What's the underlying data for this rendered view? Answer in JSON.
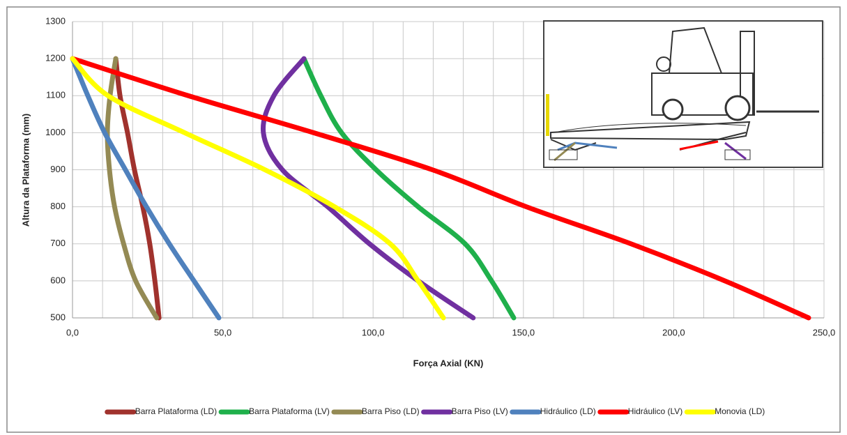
{
  "chart_data": {
    "type": "line",
    "x_label": "Força Axial (KN)",
    "y_label": "Altura da Plataforma (mm)",
    "y": [
      500,
      600,
      700,
      800,
      900,
      1000,
      1100,
      1200
    ],
    "series": [
      {
        "name": "Barra Plataforma (LD)",
        "color": "#a0322d",
        "values": [
          28.8,
          27.4,
          25.7,
          23.4,
          20.6,
          18.3,
          15.8,
          14.4
        ]
      },
      {
        "name": "Barra Plataforma (LV)",
        "color": "#1fb04b",
        "values": [
          146.8,
          139.4,
          130.6,
          115,
          101,
          89.5,
          82.6,
          77
        ]
      },
      {
        "name": "Barra Piso (LD)",
        "color": "#948a54",
        "values": [
          28,
          21,
          17,
          14,
          12.3,
          11.6,
          12.5,
          14.4
        ]
      },
      {
        "name": "Barra Piso (LV)",
        "color": "#7030a0",
        "values": [
          133.3,
          115,
          98.8,
          84.9,
          69.8,
          63.5,
          67,
          77
        ]
      },
      {
        "name": "Hidráulico (LD)",
        "color": "#4f81bd",
        "values": [
          48.7,
          40.4,
          32.2,
          24.6,
          17.6,
          10.7,
          5.1,
          0
        ]
      },
      {
        "name": "Hidráulico (LV)",
        "color": "#ff0000",
        "values": [
          244.9,
          217,
          185.8,
          151,
          119.7,
          80.2,
          38.5,
          0
        ]
      },
      {
        "name": "Monovia (LD)",
        "color": "#ffff00",
        "values": [
          123.4,
          115,
          105.7,
          87.2,
          64,
          37.3,
          11.8,
          0
        ]
      }
    ],
    "xlim": [
      0,
      250
    ],
    "xticks": [
      {
        "value": 0,
        "label": "0,0"
      },
      {
        "value": 50,
        "label": "50,0"
      },
      {
        "value": 100,
        "label": "100,0"
      },
      {
        "value": 150,
        "label": "150,0"
      },
      {
        "value": 200,
        "label": "200,0"
      },
      {
        "value": 250,
        "label": "250,0"
      }
    ],
    "xminor_ticks": [
      10,
      20,
      30,
      40,
      60,
      70,
      80,
      90,
      110,
      120,
      130,
      140,
      160,
      170,
      180,
      190,
      210,
      220,
      230,
      240
    ],
    "ylim": [
      500,
      1300
    ],
    "yticks": [
      500,
      600,
      700,
      800,
      900,
      1000,
      1100,
      1200,
      1300
    ],
    "grid": true,
    "legend": "bottom"
  }
}
